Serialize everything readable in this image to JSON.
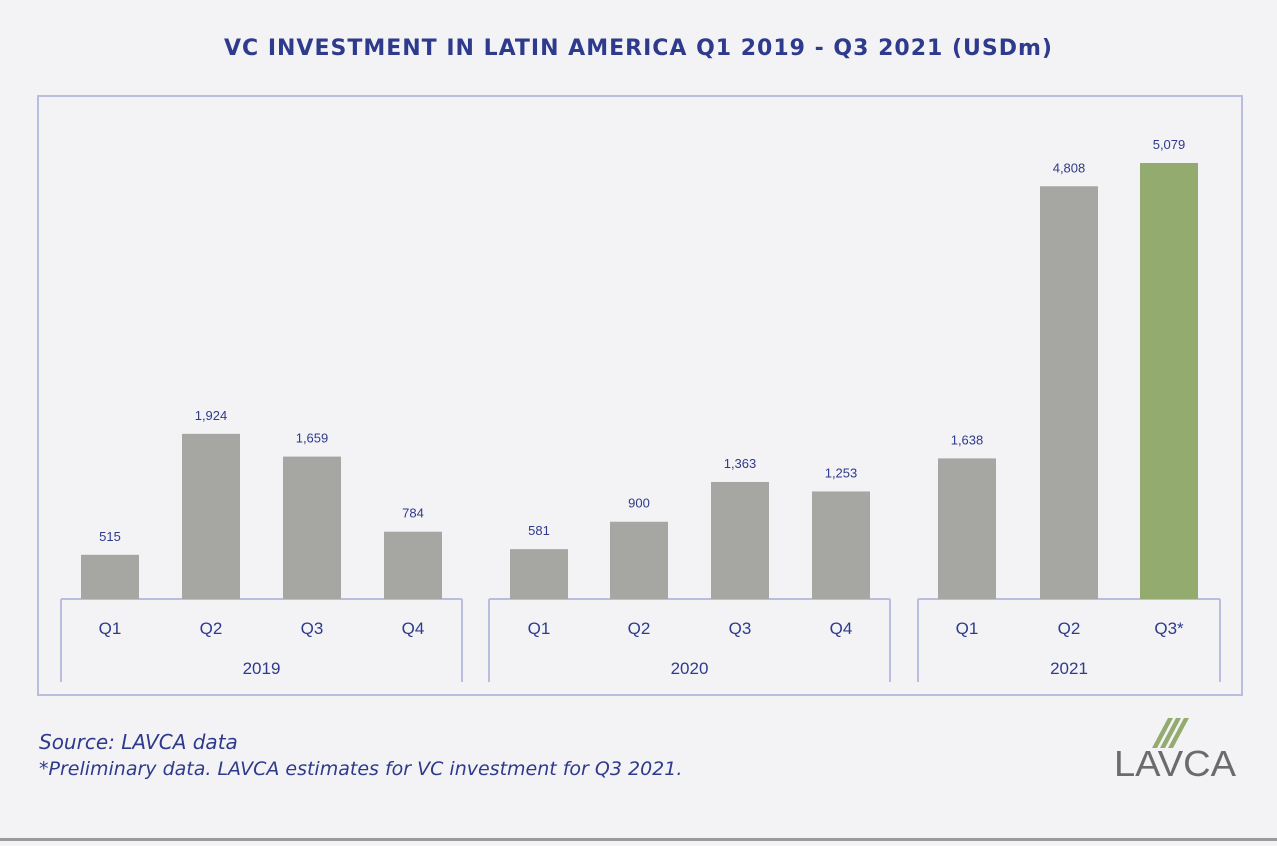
{
  "title": "VC INVESTMENT IN LATIN AMERICA Q1 2019 - Q3 2021 (USDm)",
  "chart_data": {
    "type": "bar",
    "title": "VC INVESTMENT IN LATIN AMERICA Q1 2019 - Q3 2021 (USDm)",
    "unit": "USDm",
    "ylim": [
      0,
      5079
    ],
    "groups": [
      {
        "year": "2019",
        "categories": [
          "Q1",
          "Q2",
          "Q3",
          "Q4"
        ],
        "values": [
          515,
          1924,
          1659,
          784
        ],
        "labels": [
          "515",
          "1,924",
          "1,659",
          "784"
        ]
      },
      {
        "year": "2020",
        "categories": [
          "Q1",
          "Q2",
          "Q3",
          "Q4"
        ],
        "values": [
          581,
          900,
          1363,
          1253
        ],
        "labels": [
          "581",
          "900",
          "1,363",
          "1,253"
        ]
      },
      {
        "year": "2021",
        "categories": [
          "Q1",
          "Q2",
          "Q3*"
        ],
        "values": [
          1638,
          4808,
          5079
        ],
        "labels": [
          "1,638",
          "4,808",
          "5,079"
        ]
      }
    ],
    "highlight": {
      "group": 2,
      "index": 2
    },
    "colors": {
      "bar": "#a6a7a2",
      "highlight": "#93ab6e",
      "label": "#2e3a8c",
      "axis": "#b9bedf"
    }
  },
  "footer": {
    "source": "Source: LAVCA data",
    "note": "*Preliminary data. LAVCA estimates for VC investment for Q3 2021."
  },
  "logo": {
    "text": "LAVCA"
  }
}
